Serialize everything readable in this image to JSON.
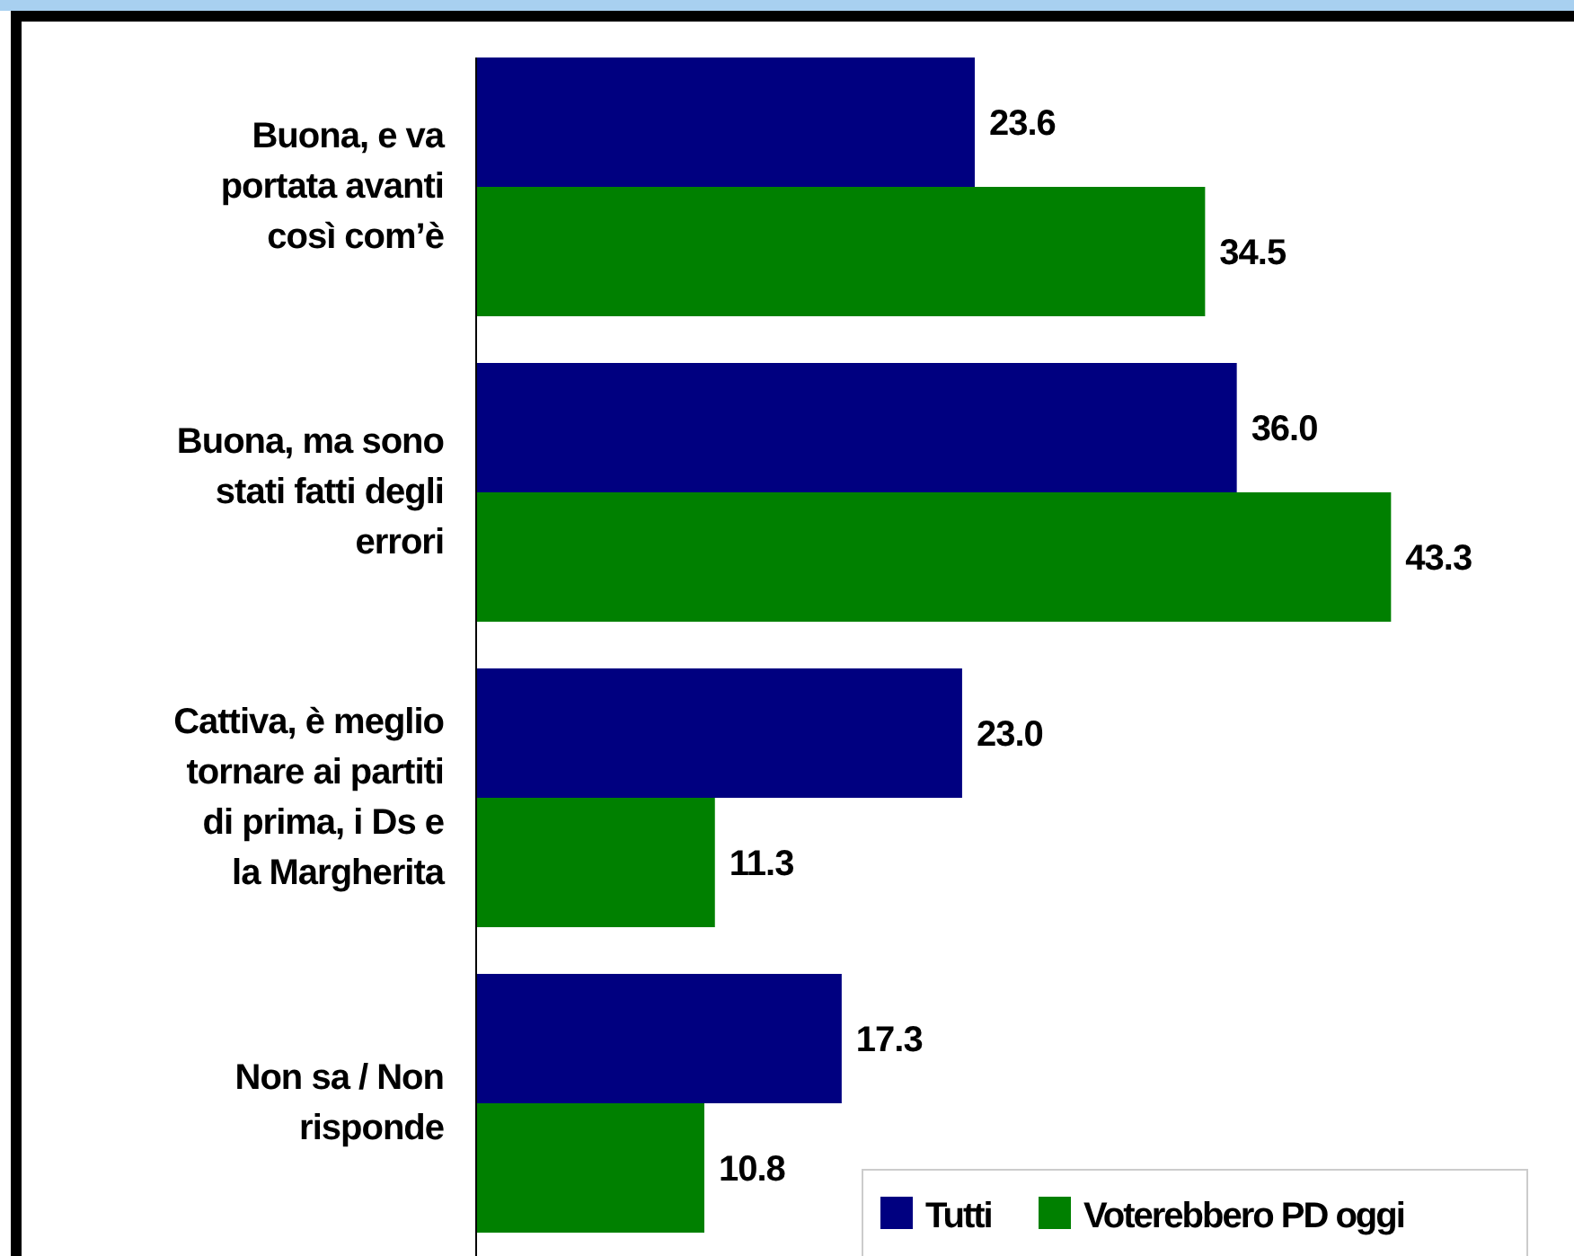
{
  "chart_data": {
    "type": "bar",
    "orientation": "horizontal",
    "categories": [
      "Buona, e va portata avanti così com’è",
      "Buona, ma sono stati fatti degli errori",
      "Cattiva, è meglio tornare ai partiti di prima, i Ds e la Margherita",
      "Non sa / Non risponde"
    ],
    "series": [
      {
        "name": "Tutti",
        "color": "#000080",
        "values": [
          23.6,
          36.0,
          23.0,
          17.3
        ],
        "value_labels": [
          "23.6",
          "36.0",
          "23.0",
          "17.3"
        ]
      },
      {
        "name": "Voterebbero PD oggi",
        "color": "#008000",
        "values": [
          34.5,
          43.3,
          11.3,
          10.8
        ],
        "value_labels": [
          "34.5",
          "43.3",
          "11.3",
          "10.8"
        ]
      }
    ],
    "legend": "bottom right",
    "tick_labels": "y"
  }
}
